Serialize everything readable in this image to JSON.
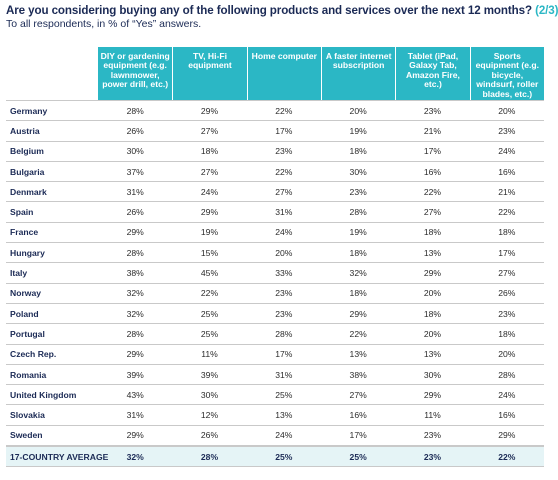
{
  "chart_data": {
    "type": "table",
    "title": "Are you considering buying any of the following products and services over the next 12 months?",
    "title_part": "(2/3)",
    "subtitle": "To all respondents, in % of “Yes” answers.",
    "columns": [
      "DIY or gardening equipment (e.g. lawnmower, power drill, etc.)",
      "TV, Hi-Fi equipment",
      "Home computer",
      "A faster internet subscription",
      "Tablet (iPad, Galaxy Tab, Amazon Fire, etc.)",
      "Sports equipment (e.g. bicycle, windsurf, roller blades, etc.)"
    ],
    "rows": [
      {
        "country": "Germany",
        "values": [
          "28%",
          "29%",
          "22%",
          "20%",
          "23%",
          "20%"
        ]
      },
      {
        "country": "Austria",
        "values": [
          "26%",
          "27%",
          "17%",
          "19%",
          "21%",
          "23%"
        ]
      },
      {
        "country": "Belgium",
        "values": [
          "30%",
          "18%",
          "23%",
          "18%",
          "17%",
          "24%"
        ]
      },
      {
        "country": "Bulgaria",
        "values": [
          "37%",
          "27%",
          "22%",
          "30%",
          "16%",
          "16%"
        ]
      },
      {
        "country": "Denmark",
        "values": [
          "31%",
          "24%",
          "27%",
          "23%",
          "22%",
          "21%"
        ]
      },
      {
        "country": "Spain",
        "values": [
          "26%",
          "29%",
          "31%",
          "28%",
          "27%",
          "22%"
        ]
      },
      {
        "country": "France",
        "values": [
          "29%",
          "19%",
          "24%",
          "19%",
          "18%",
          "18%"
        ]
      },
      {
        "country": "Hungary",
        "values": [
          "28%",
          "15%",
          "20%",
          "18%",
          "13%",
          "17%"
        ]
      },
      {
        "country": "Italy",
        "values": [
          "38%",
          "45%",
          "33%",
          "32%",
          "29%",
          "27%"
        ]
      },
      {
        "country": "Norway",
        "values": [
          "32%",
          "22%",
          "23%",
          "18%",
          "20%",
          "26%"
        ]
      },
      {
        "country": "Poland",
        "values": [
          "32%",
          "25%",
          "23%",
          "29%",
          "18%",
          "23%"
        ]
      },
      {
        "country": "Portugal",
        "values": [
          "28%",
          "25%",
          "28%",
          "22%",
          "20%",
          "18%"
        ]
      },
      {
        "country": "Czech Rep.",
        "values": [
          "29%",
          "11%",
          "17%",
          "13%",
          "13%",
          "20%"
        ]
      },
      {
        "country": "Romania",
        "values": [
          "39%",
          "39%",
          "31%",
          "38%",
          "30%",
          "28%"
        ]
      },
      {
        "country": "United Kingdom",
        "values": [
          "43%",
          "30%",
          "25%",
          "27%",
          "29%",
          "24%"
        ]
      },
      {
        "country": "Slovakia",
        "values": [
          "31%",
          "12%",
          "13%",
          "16%",
          "11%",
          "16%"
        ]
      },
      {
        "country": "Sweden",
        "values": [
          "29%",
          "26%",
          "24%",
          "17%",
          "23%",
          "29%"
        ]
      }
    ],
    "average": {
      "country": "17-COUNTRY AVERAGE",
      "values": [
        "32%",
        "28%",
        "25%",
        "25%",
        "23%",
        "22%"
      ]
    },
    "colors": {
      "header": "#2bb7c5",
      "title": "#1b2a55",
      "average_row": "#e5f4f6"
    }
  }
}
